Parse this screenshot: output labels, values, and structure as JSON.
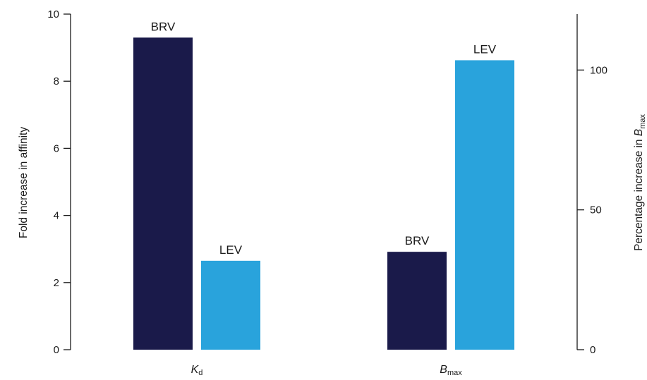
{
  "chart_data": {
    "type": "bar",
    "groups": [
      {
        "category": "Kd",
        "category_main": "K",
        "category_sub": "d",
        "axis": "left",
        "bars": [
          {
            "name": "BRV",
            "value": 9.3,
            "color": "#1a1a4a"
          },
          {
            "name": "LEV",
            "value": 2.65,
            "color": "#29a3dc"
          }
        ]
      },
      {
        "category": "Bmax",
        "category_main": "B",
        "category_sub": "max",
        "axis": "right",
        "bars": [
          {
            "name": "BRV",
            "value": 35,
            "color": "#1a1a4a"
          },
          {
            "name": "LEV",
            "value": 103.5,
            "color": "#29a3dc"
          }
        ]
      }
    ],
    "left_axis": {
      "label": "Fold increase in affinity",
      "ylim": [
        0,
        10
      ],
      "ticks": [
        0,
        2,
        4,
        6,
        8,
        10
      ]
    },
    "right_axis": {
      "label_main": "Percentage increase in ",
      "label_italic": "B",
      "label_sub": "max",
      "ylim": [
        0,
        120
      ],
      "ticks": [
        0,
        50,
        100
      ]
    },
    "grid": false,
    "legend": "none"
  }
}
